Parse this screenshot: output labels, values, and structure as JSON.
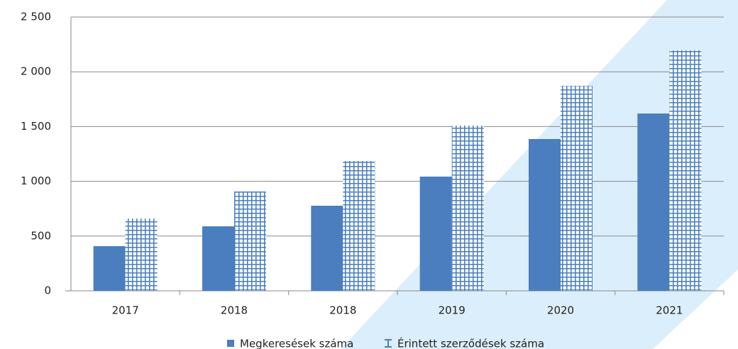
{
  "chart_data": {
    "type": "bar",
    "categories": [
      "2017",
      "2018",
      "2018",
      "2019",
      "2020",
      "2021"
    ],
    "series": [
      {
        "name": "Megkeresések száma",
        "color": "#4a7ebf",
        "pattern": "solid",
        "values": [
          408,
          589,
          777,
          1043,
          1386,
          1619
        ]
      },
      {
        "name": "Érintett szerződések száma",
        "color": "#4a7ebf",
        "pattern": "grid",
        "values": [
          660,
          907,
          1185,
          1509,
          1872,
          2196
        ]
      }
    ],
    "ylim": [
      0,
      2500
    ],
    "yticks": [
      0,
      500,
      {
        "value": 1000,
        "label": "1 000"
      },
      {
        "value": 1500,
        "label": "1 500"
      },
      {
        "value": 2000,
        "label": "2 000"
      },
      {
        "value": 2500,
        "label": "2 500"
      }
    ],
    "grid": true,
    "legend": "bottom"
  }
}
